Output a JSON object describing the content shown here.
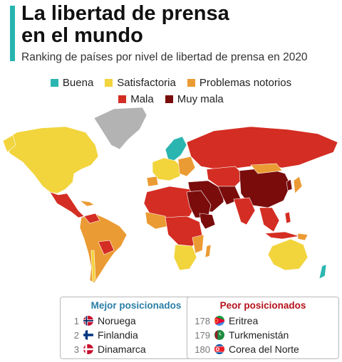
{
  "title_line1": "La libertad de prensa",
  "title_line2": "en el mundo",
  "subtitle": "Ranking de países por nivel de libertad de prensa en 2020",
  "legend": [
    {
      "label": "Buena",
      "color": "#2bb5b0"
    },
    {
      "label": "Satisfactoria",
      "color": "#f2d43d"
    },
    {
      "label": "Problemas notorios",
      "color": "#eb9b33"
    },
    {
      "label": "Mala",
      "color": "#d42d23"
    },
    {
      "label": "Muy mala",
      "color": "#7a0c0c"
    }
  ],
  "no_data_color": "#b3b3b3",
  "best": {
    "title": "Mejor posicionados",
    "items": [
      {
        "rank": "1",
        "country": "Noruega",
        "flag_icon": "norway-flag-icon"
      },
      {
        "rank": "2",
        "country": "Finlandia",
        "flag_icon": "finland-flag-icon"
      },
      {
        "rank": "3",
        "country": "Dinamarca",
        "flag_icon": "denmark-flag-icon"
      }
    ]
  },
  "worst": {
    "title": "Peor posicionados",
    "items": [
      {
        "rank": "178",
        "country": "Eritrea",
        "flag_icon": "eritrea-flag-icon"
      },
      {
        "rank": "179",
        "country": "Turkmenistán",
        "flag_icon": "turkmenistan-flag-icon"
      },
      {
        "rank": "180",
        "country": "Corea del Norte",
        "flag_icon": "north-korea-flag-icon"
      }
    ]
  }
}
